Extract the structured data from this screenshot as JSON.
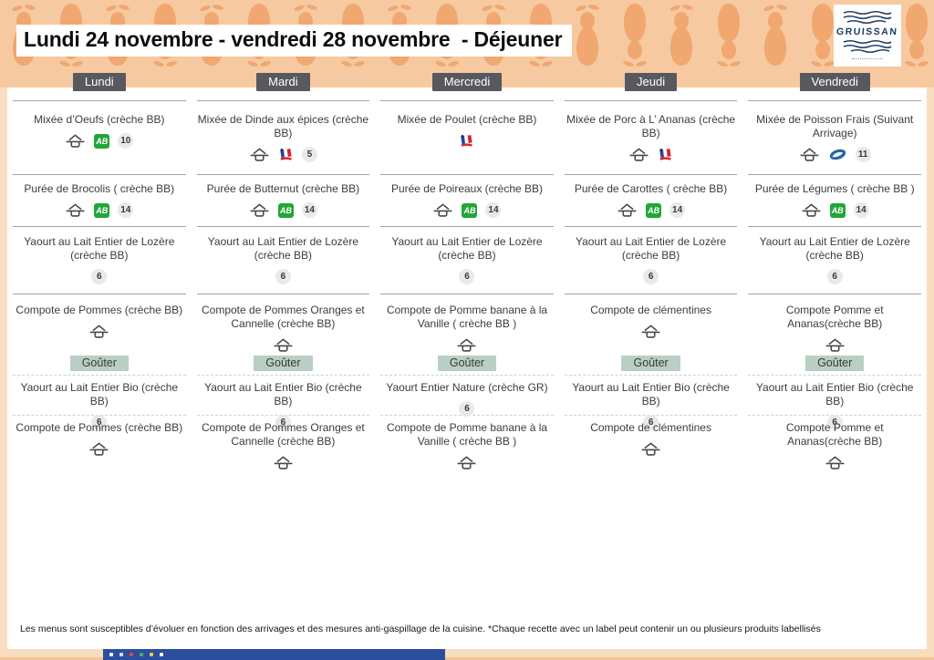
{
  "header": {
    "title": "Lundi 24 novembre - vendredi 28 novembre  - Déjeuner"
  },
  "logo": {
    "name": "GRUISSAN"
  },
  "colors": {
    "header_base": "#f7c9a0",
    "header_shapes": "#f0a770",
    "day_chip": "#57595e",
    "gouter_chip": "#b9cfc4",
    "ab_green": "#21a637",
    "badge_gray": "#e9e9e9",
    "bottom_bar_blue": "#2c4e9e"
  },
  "days": [
    {
      "label": "Lundi",
      "gouter_label": "Goûter",
      "lunch": [
        {
          "text": "Mixée d’Oeufs (crèche BB)",
          "icons": [
            "fait-maison",
            "ab-bio"
          ],
          "badge": "10"
        },
        {
          "text": "Purée de Brocolis ( crèche BB)",
          "icons": [
            "fait-maison",
            "ab-bio"
          ],
          "badge": "14"
        },
        {
          "text": "Yaourt au Lait Entier de Lozère (crèche BB)",
          "icons": [],
          "badge": "6"
        },
        {
          "text": "Compote de Pommes (crèche BB)",
          "icons": [
            "fait-maison"
          ],
          "badge": ""
        }
      ],
      "gouter": [
        {
          "text": "Yaourt au Lait Entier Bio  (crèche BB)",
          "icons": [],
          "badge": "6"
        },
        {
          "text": "Compote de Pommes (crèche BB)",
          "icons": [
            "fait-maison"
          ],
          "badge": ""
        }
      ]
    },
    {
      "label": "Mardi",
      "gouter_label": "Goûter",
      "lunch": [
        {
          "text": "Mixée de Dinde aux épices (crèche BB)",
          "icons": [
            "fait-maison",
            "france-flag"
          ],
          "badge": "5"
        },
        {
          "text": "Purée de Butternut (crèche BB)",
          "icons": [
            "fait-maison",
            "ab-bio"
          ],
          "badge": "14"
        },
        {
          "text": "Yaourt au Lait Entier de Lozère (crèche BB)",
          "icons": [],
          "badge": "6"
        },
        {
          "text": "Compote de Pommes Oranges et Cannelle (crèche BB)",
          "icons": [
            "fait-maison"
          ],
          "badge": ""
        }
      ],
      "gouter": [
        {
          "text": "Yaourt au Lait Entier Bio  (crèche BB)",
          "icons": [],
          "badge": "6"
        },
        {
          "text": "Compote de Pommes Oranges et Cannelle (crèche BB)",
          "icons": [
            "fait-maison"
          ],
          "badge": ""
        }
      ]
    },
    {
      "label": "Mercredi",
      "gouter_label": "Goûter",
      "lunch": [
        {
          "text": "Mixée de Poulet (crèche BB)",
          "icons": [
            "france-flag"
          ],
          "badge": ""
        },
        {
          "text": "Purée de Poireaux (crèche BB)",
          "icons": [
            "fait-maison",
            "ab-bio"
          ],
          "badge": "14"
        },
        {
          "text": "Yaourt au Lait Entier de Lozère (crèche BB)",
          "icons": [],
          "badge": "6"
        },
        {
          "text": "Compote de Pomme banane à la Vanille ( crèche BB )",
          "icons": [
            "fait-maison"
          ],
          "badge": ""
        }
      ],
      "gouter": [
        {
          "text": "Yaourt Entier Nature (crèche GR)",
          "icons": [],
          "badge": "6"
        },
        {
          "text": "Compote de Pomme banane à la Vanille ( crèche BB )",
          "icons": [
            "fait-maison"
          ],
          "badge": ""
        }
      ]
    },
    {
      "label": "Jeudi",
      "gouter_label": "Goûter",
      "lunch": [
        {
          "text": "Mixée de Porc à L’ Ananas  (crèche BB)",
          "icons": [
            "fait-maison",
            "france-flag"
          ],
          "badge": ""
        },
        {
          "text": "Purée de Carottes ( crèche BB)",
          "icons": [
            "fait-maison",
            "ab-bio"
          ],
          "badge": "14"
        },
        {
          "text": "Yaourt au Lait Entier de Lozère (crèche BB)",
          "icons": [],
          "badge": "6"
        },
        {
          "text": "Compote de clémentines",
          "icons": [
            "fait-maison"
          ],
          "badge": ""
        }
      ],
      "gouter": [
        {
          "text": "Yaourt au Lait Entier Bio  (crèche BB)",
          "icons": [],
          "badge": "6"
        },
        {
          "text": "Compote de clémentines",
          "icons": [
            "fait-maison"
          ],
          "badge": ""
        }
      ]
    },
    {
      "label": "Vendredi",
      "gouter_label": "Goûter",
      "lunch": [
        {
          "text": "Mixée de Poisson Frais (Suivant Arrivage)",
          "icons": [
            "fait-maison",
            "fish-bleu"
          ],
          "badge": "11"
        },
        {
          "text": "Purée de Légumes ( crèche BB )",
          "icons": [
            "fait-maison",
            "ab-bio"
          ],
          "badge": "14"
        },
        {
          "text": "Yaourt au Lait Entier de Lozère (crèche BB)",
          "icons": [],
          "badge": "6"
        },
        {
          "text": "Compote Pomme et Ananas(crèche BB)",
          "icons": [
            "fait-maison"
          ],
          "badge": ""
        }
      ],
      "gouter": [
        {
          "text": "Yaourt au Lait Entier Bio  (crèche BB)",
          "icons": [],
          "badge": "6"
        },
        {
          "text": "Compote Pomme et Ananas(crèche BB)",
          "icons": [
            "fait-maison"
          ],
          "badge": ""
        }
      ]
    }
  ],
  "footer": {
    "disclaimer": "Les menus sont susceptibles d’évoluer en fonction des arrivages et des mesures anti-gaspillage de la cuisine. *Chaque recette avec un label peut contenir un ou plusieurs produits labellisés"
  }
}
